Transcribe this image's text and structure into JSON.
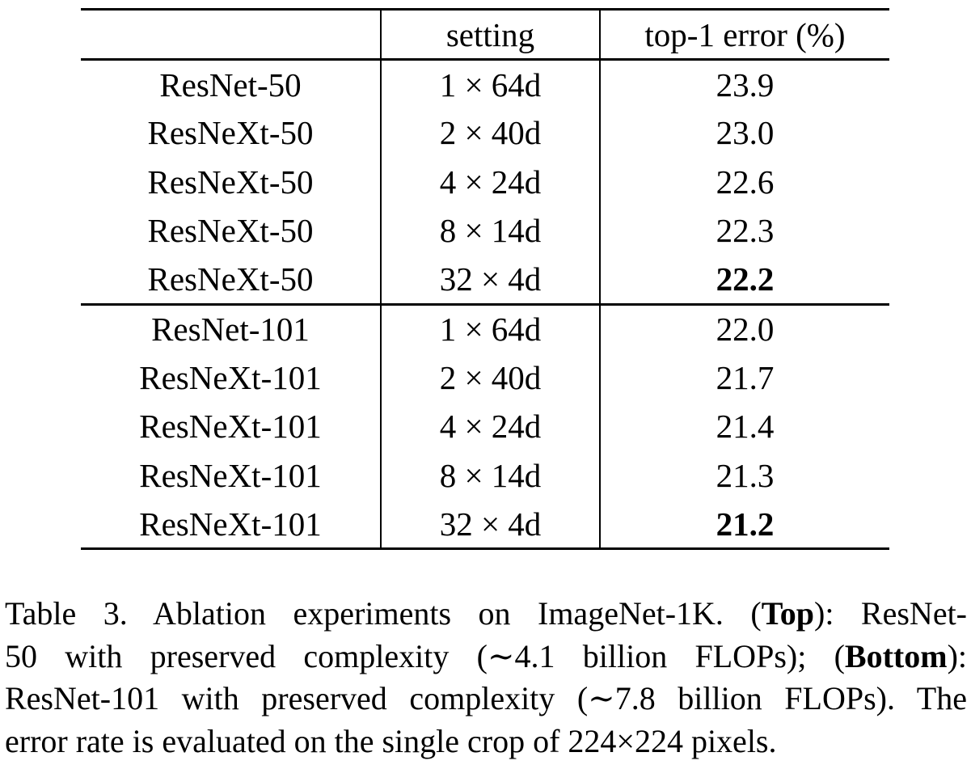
{
  "figure": {
    "table": {
      "header": [
        "",
        "setting",
        "top-1 error (%)"
      ],
      "groups": [
        {
          "rows": [
            {
              "model": "ResNet-50",
              "setting": "1 × 64d",
              "top1_error": "23.9",
              "best": false
            },
            {
              "model": "ResNeXt-50",
              "setting": "2 × 40d",
              "top1_error": "23.0",
              "best": false
            },
            {
              "model": "ResNeXt-50",
              "setting": "4 × 24d",
              "top1_error": "22.6",
              "best": false
            },
            {
              "model": "ResNeXt-50",
              "setting": "8 × 14d",
              "top1_error": "22.3",
              "best": false
            },
            {
              "model": "ResNeXt-50",
              "setting": "32 × 4d",
              "top1_error": "22.2",
              "best": true
            }
          ]
        },
        {
          "rows": [
            {
              "model": "ResNet-101",
              "setting": "1 × 64d",
              "top1_error": "22.0",
              "best": false
            },
            {
              "model": "ResNeXt-101",
              "setting": "2 × 40d",
              "top1_error": "21.7",
              "best": false
            },
            {
              "model": "ResNeXt-101",
              "setting": "4 × 24d",
              "top1_error": "21.4",
              "best": false
            },
            {
              "model": "ResNeXt-101",
              "setting": "8 × 14d",
              "top1_error": "21.3",
              "best": false
            },
            {
              "model": "ResNeXt-101",
              "setting": "32 × 4d",
              "top1_error": "21.2",
              "best": true
            }
          ]
        }
      ]
    },
    "caption": {
      "lines": [
        {
          "segments": [
            {
              "text": "Table 3. Ablation experiments on ImageNet-1K. (",
              "bold": false
            },
            {
              "text": "Top",
              "bold": true
            },
            {
              "text": "): ResNet-",
              "bold": false
            }
          ]
        },
        {
          "segments": [
            {
              "text": "50 with preserved complexity (∼4.1 billion FLOPs); (",
              "bold": false
            },
            {
              "text": "Bottom",
              "bold": true
            },
            {
              "text": "):",
              "bold": false
            }
          ]
        },
        {
          "segments": [
            {
              "text": "ResNet-101 with preserved complexity (∼7.8 billion FLOPs). The",
              "bold": false
            }
          ]
        },
        {
          "segments": [
            {
              "text": "error rate is evaluated on the single crop of 224×224 pixels.",
              "bold": false
            }
          ]
        }
      ]
    }
  },
  "colors": {
    "text": "#000000",
    "background": "#ffffff"
  }
}
